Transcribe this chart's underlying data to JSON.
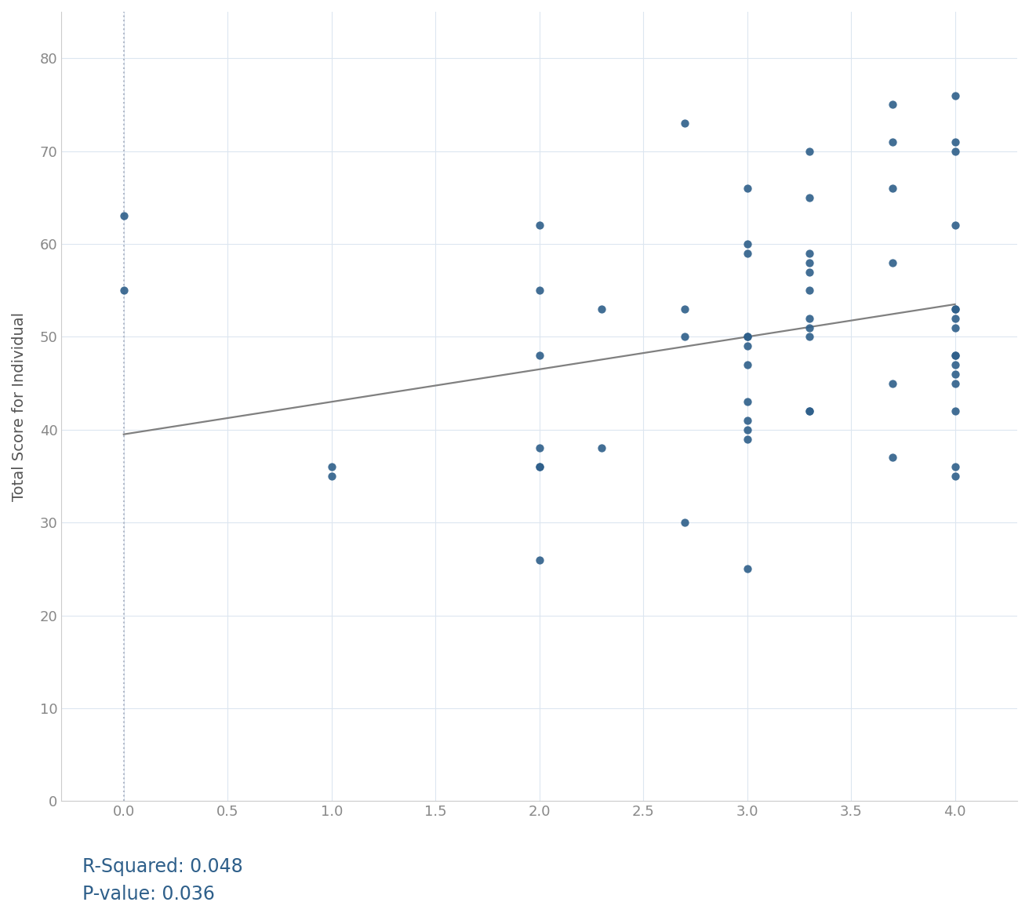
{
  "x": [
    0.0,
    0.0,
    1.0,
    1.0,
    2.0,
    2.0,
    2.0,
    2.0,
    2.0,
    2.0,
    2.0,
    2.3,
    2.3,
    2.7,
    2.7,
    2.7,
    2.7,
    3.0,
    3.0,
    3.0,
    3.0,
    3.0,
    3.0,
    3.0,
    3.0,
    3.0,
    3.0,
    3.0,
    3.0,
    3.3,
    3.3,
    3.3,
    3.3,
    3.3,
    3.3,
    3.3,
    3.3,
    3.3,
    3.3,
    3.3,
    3.7,
    3.7,
    3.7,
    3.7,
    3.7,
    3.7,
    4.0,
    4.0,
    4.0,
    4.0,
    4.0,
    4.0,
    4.0,
    4.0,
    4.0,
    4.0,
    4.0,
    4.0,
    4.0,
    4.0,
    4.0,
    4.0
  ],
  "y": [
    63.0,
    55.0,
    36.0,
    35.0,
    62.0,
    55.0,
    48.0,
    38.0,
    36.0,
    36.0,
    26.0,
    53.0,
    38.0,
    73.0,
    53.0,
    50.0,
    30.0,
    66.0,
    59.0,
    60.0,
    50.0,
    50.0,
    49.0,
    47.0,
    43.0,
    41.0,
    40.0,
    39.0,
    25.0,
    70.0,
    65.0,
    59.0,
    58.0,
    57.0,
    55.0,
    52.0,
    51.0,
    50.0,
    42.0,
    42.0,
    75.0,
    71.0,
    66.0,
    58.0,
    45.0,
    37.0,
    76.0,
    71.0,
    70.0,
    62.0,
    53.0,
    53.0,
    52.0,
    51.0,
    48.0,
    48.0,
    47.0,
    46.0,
    45.0,
    42.0,
    36.0,
    35.0
  ],
  "regression_x0": 0.0,
  "regression_y0": 39.5,
  "regression_x1": 4.0,
  "regression_y1": 53.5,
  "dot_color": "#2e5f8a",
  "dot_size": 55,
  "dot_alpha": 0.9,
  "line_color": "#808080",
  "line_width": 1.6,
  "ylabel": "Total Score for Individual",
  "xlabel": "",
  "xlim": [
    -0.3,
    4.3
  ],
  "ylim": [
    0,
    85
  ],
  "yticks": [
    0,
    10,
    20,
    30,
    40,
    50,
    60,
    70,
    80
  ],
  "xticks": [
    0.0,
    0.5,
    1.0,
    1.5,
    2.0,
    2.5,
    3.0,
    3.5,
    4.0
  ],
  "r_squared": "0.048",
  "p_value": "0.036",
  "annotation_color": "#2e5f8a",
  "annotation_fontsize": 17,
  "background_color": "#ffffff",
  "grid_color": "#dce6f0",
  "vline_color": "#b0b8c8",
  "vline_style": "dotted"
}
